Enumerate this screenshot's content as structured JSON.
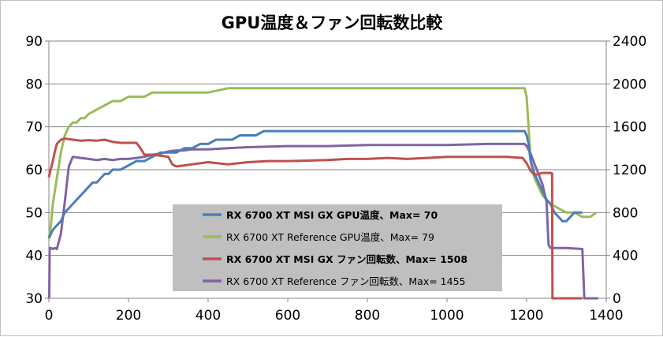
{
  "chart_data": {
    "type": "line",
    "title": "GPU温度＆ファン回転数比較",
    "xlabel": "",
    "ylabel": "",
    "y2label": "",
    "xlim": [
      0,
      1400
    ],
    "ylim": [
      30,
      90
    ],
    "y2lim": [
      0,
      2400
    ],
    "x_ticks": [
      0,
      200,
      400,
      600,
      800,
      1000,
      1200,
      1400
    ],
    "y_ticks": [
      30,
      40,
      50,
      60,
      70,
      80,
      90
    ],
    "y2_ticks": [
      0,
      400,
      800,
      1200,
      1600,
      2000,
      2400
    ],
    "grid": true,
    "legend_position": "bottom-center",
    "series": [
      {
        "name": "RX 6700 XT MSI GX GPU温度、Max= 70",
        "axis": "left",
        "color": "#4a7ebb",
        "bold": true,
        "x": [
          0,
          5,
          10,
          20,
          30,
          40,
          50,
          60,
          70,
          80,
          90,
          100,
          110,
          120,
          130,
          140,
          150,
          160,
          180,
          200,
          220,
          240,
          260,
          280,
          300,
          320,
          340,
          360,
          380,
          400,
          420,
          440,
          460,
          480,
          500,
          520,
          540,
          560,
          580,
          600,
          650,
          700,
          750,
          800,
          850,
          900,
          950,
          1000,
          1050,
          1100,
          1150,
          1195,
          1200,
          1205,
          1210,
          1220,
          1230,
          1240,
          1250,
          1260,
          1270,
          1280,
          1290,
          1300,
          1310,
          1320,
          1330,
          1340
        ],
        "values": [
          44,
          45,
          46,
          47,
          48,
          50,
          51,
          52,
          53,
          54,
          55,
          56,
          57,
          57,
          58,
          59,
          59,
          60,
          60,
          61,
          62,
          62,
          63,
          64,
          64,
          64,
          65,
          65,
          66,
          66,
          67,
          67,
          67,
          68,
          68,
          68,
          69,
          69,
          69,
          69,
          69,
          69,
          69,
          69,
          69,
          69,
          69,
          69,
          69,
          69,
          69,
          69,
          68,
          66,
          62,
          59,
          57,
          55,
          53,
          52,
          50,
          49,
          48,
          48,
          49,
          50,
          50,
          50
        ]
      },
      {
        "name": "RX 6700 XT Reference GPU温度、Max= 79",
        "axis": "left",
        "color": "#9bbb59",
        "bold": false,
        "x": [
          0,
          5,
          10,
          20,
          30,
          40,
          50,
          60,
          70,
          80,
          90,
          100,
          120,
          140,
          160,
          180,
          200,
          220,
          240,
          260,
          280,
          300,
          350,
          400,
          450,
          500,
          600,
          700,
          800,
          900,
          1000,
          1100,
          1150,
          1195,
          1200,
          1205,
          1210,
          1220,
          1230,
          1240,
          1260,
          1280,
          1300,
          1320,
          1340,
          1360,
          1375
        ],
        "values": [
          44,
          47,
          52,
          58,
          64,
          68,
          70,
          71,
          71,
          72,
          72,
          73,
          74,
          75,
          76,
          76,
          77,
          77,
          77,
          78,
          78,
          78,
          78,
          78,
          79,
          79,
          79,
          79,
          79,
          79,
          79,
          79,
          79,
          79,
          77,
          70,
          62,
          58,
          56,
          54,
          52,
          51,
          50,
          50,
          49,
          49,
          50
        ]
      },
      {
        "name": "RX 6700 XT MSI GX ファン回転数、Max= 1508",
        "axis": "right",
        "color": "#c0504d",
        "bold": true,
        "x": [
          0,
          3,
          6,
          10,
          15,
          20,
          30,
          40,
          60,
          80,
          100,
          120,
          140,
          160,
          180,
          200,
          220,
          230,
          240,
          260,
          280,
          300,
          310,
          320,
          340,
          360,
          400,
          450,
          500,
          550,
          600,
          650,
          700,
          750,
          800,
          850,
          900,
          950,
          1000,
          1050,
          1100,
          1150,
          1190,
          1200,
          1210,
          1220,
          1240,
          1260,
          1264,
          1265,
          1300,
          1320,
          1340
        ],
        "values": [
          1130,
          1180,
          1220,
          1280,
          1370,
          1440,
          1480,
          1490,
          1480,
          1470,
          1475,
          1470,
          1480,
          1460,
          1450,
          1450,
          1450,
          1400,
          1340,
          1340,
          1330,
          1320,
          1250,
          1230,
          1240,
          1250,
          1270,
          1250,
          1270,
          1280,
          1280,
          1285,
          1290,
          1300,
          1300,
          1310,
          1300,
          1310,
          1320,
          1320,
          1320,
          1320,
          1310,
          1260,
          1190,
          1150,
          1170,
          1170,
          1165,
          0,
          0,
          0,
          0
        ]
      },
      {
        "name": "RX 6700 XT Reference ファン回転数、Max= 1455",
        "axis": "right",
        "color": "#8064a2",
        "bold": false,
        "x": [
          0,
          1,
          2,
          5,
          10,
          15,
          20,
          30,
          40,
          50,
          60,
          80,
          100,
          120,
          140,
          160,
          180,
          200,
          220,
          240,
          260,
          280,
          300,
          320,
          340,
          360,
          400,
          450,
          500,
          600,
          700,
          800,
          900,
          1000,
          1100,
          1150,
          1195,
          1200,
          1210,
          1220,
          1230,
          1240,
          1250,
          1255,
          1260,
          1300,
          1340,
          1345,
          1350,
          1380
        ],
        "values": [
          0,
          20,
          470,
          470,
          460,
          470,
          460,
          600,
          900,
          1230,
          1320,
          1310,
          1300,
          1290,
          1300,
          1290,
          1300,
          1300,
          1310,
          1320,
          1340,
          1350,
          1370,
          1380,
          1380,
          1390,
          1390,
          1400,
          1410,
          1420,
          1420,
          1430,
          1430,
          1430,
          1440,
          1440,
          1440,
          1420,
          1350,
          1250,
          1160,
          1060,
          900,
          500,
          470,
          470,
          460,
          0,
          0,
          0
        ]
      }
    ]
  }
}
